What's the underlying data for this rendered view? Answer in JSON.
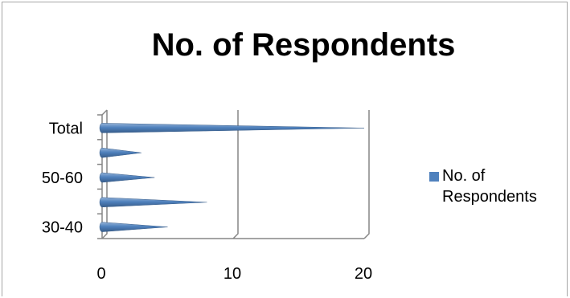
{
  "colors": {
    "series": "#4f81bd",
    "series_dark": "#385d8a",
    "axis": "#868686",
    "frame": "#a6a6a6"
  },
  "chart_data": {
    "type": "bar",
    "title": "No. of Respondents",
    "orientation": "horizontal",
    "shape": "3d-cone",
    "categories": [
      "30-40",
      "",
      "50-60",
      "",
      "Total"
    ],
    "visible_category_labels": [
      "30-40",
      "50-60",
      "Total"
    ],
    "series": [
      {
        "name": "No. of Respondents",
        "values": [
          5,
          8,
          4,
          3,
          20
        ]
      }
    ],
    "x_ticks": [
      0,
      10,
      20
    ],
    "xlim": [
      0,
      20
    ],
    "gridlines": true,
    "legend_position": "right"
  }
}
